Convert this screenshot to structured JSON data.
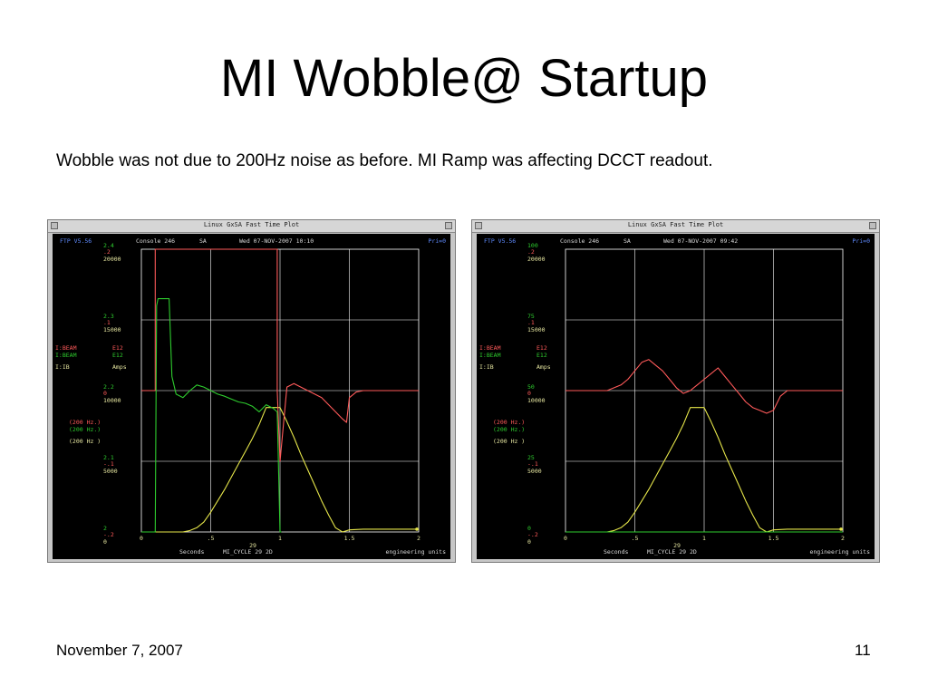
{
  "slide": {
    "title": "MI Wobble@ Startup",
    "subtitle": "Wobble was not due to 200Hz noise as before. MI Ramp was affecting DCCT readout.",
    "footer_date": "November 7, 2007",
    "page_number": "11"
  },
  "chart_data": [
    {
      "type": "line",
      "window_title": "Linux GxSA  Fast Time Plot",
      "header": {
        "program": "FTP V5.56",
        "console": "Console 246",
        "mode": "SA",
        "datetime": "Wed 07-NOV-2007 10:10",
        "priority": "Pri=0"
      },
      "colors": {
        "series1": "#ff5a5a",
        "series2": "#2ecc2e",
        "series3": "#e6e64a",
        "grid": "#ffffff"
      },
      "axis_labels": {
        "series1": [
          [
            "2.4",
            ".2"
          ],
          [
            "2.3",
            ".1"
          ],
          [
            "2.2",
            "0"
          ],
          [
            "2.1",
            "-.1"
          ],
          [
            "2",
            "-.2"
          ]
        ],
        "series3": [
          "20000",
          "15000",
          "10000",
          "5000",
          "0"
        ]
      },
      "legend": [
        {
          "device": "I:BEAM",
          "units": "E12",
          "range": "(200  Hz.)"
        },
        {
          "device": "I:BEAM",
          "units": "E12",
          "range": "(200  Hz.)"
        },
        {
          "device": "I:IB",
          "units": "Amps",
          "range": "(200   Hz )"
        }
      ],
      "x_ticks": [
        "0",
        ".5",
        "1",
        "1.5",
        "2"
      ],
      "xlim": [
        0,
        2
      ],
      "footer": {
        "xlabel": "Seconds",
        "event": "MI_CYCLE  29 2D",
        "sub": "29",
        "units": "engineering units"
      },
      "series": [
        {
          "ylim": [
            2,
            2.4
          ],
          "x": [
            0,
            0.02,
            0.03,
            0.05,
            0.08,
            0.1,
            0.1,
            0.98,
            0.98,
            1.0,
            1.05,
            1.1,
            1.15,
            1.2,
            1.25,
            1.3,
            1.35,
            1.4,
            1.45,
            1.48,
            1.5,
            1.55,
            1.6,
            1.7,
            1.8,
            1.9,
            2.0
          ],
          "y": [
            2.2,
            2.2,
            2.2,
            2.2,
            2.2,
            2.2,
            2.4,
            2.4,
            2.2,
            2.1,
            2.205,
            2.21,
            2.205,
            2.2,
            2.195,
            2.19,
            2.18,
            2.17,
            2.16,
            2.155,
            2.19,
            2.198,
            2.2,
            2.2,
            2.2,
            2.2,
            2.2
          ]
        },
        {
          "ylim": [
            -0.2,
            0.2
          ],
          "x": [
            0,
            0.1,
            0.11,
            0.12,
            0.14,
            0.2,
            0.22,
            0.25,
            0.3,
            0.35,
            0.4,
            0.45,
            0.5,
            0.55,
            0.6,
            0.65,
            0.7,
            0.75,
            0.8,
            0.85,
            0.9,
            0.95,
            0.98,
            1.0,
            1.01
          ],
          "y": [
            -0.2,
            -0.2,
            0.12,
            0.13,
            0.13,
            0.13,
            0.02,
            -0.005,
            -0.01,
            0.0,
            0.008,
            0.005,
            0.0,
            -0.005,
            -0.008,
            -0.012,
            -0.016,
            -0.018,
            -0.022,
            -0.03,
            -0.02,
            -0.025,
            -0.03,
            -0.2,
            -0.2
          ]
        },
        {
          "ylim": [
            0,
            20000
          ],
          "x": [
            0,
            0.15,
            0.25,
            0.3,
            0.35,
            0.4,
            0.45,
            0.5,
            0.55,
            0.6,
            0.65,
            0.7,
            0.75,
            0.8,
            0.85,
            0.9,
            0.95,
            1.0,
            1.05,
            1.1,
            1.15,
            1.2,
            1.25,
            1.3,
            1.35,
            1.4,
            1.45,
            1.5,
            1.6,
            1.7,
            1.8,
            1.9,
            2.0
          ],
          "y": [
            0,
            0,
            0,
            0,
            100,
            300,
            700,
            1400,
            2200,
            3000,
            3900,
            4800,
            5700,
            6600,
            7600,
            8800,
            8800,
            8800,
            7800,
            6700,
            5500,
            4400,
            3300,
            2200,
            1200,
            300,
            0,
            150,
            200,
            200,
            200,
            200,
            200
          ]
        }
      ]
    },
    {
      "type": "line",
      "window_title": "Linux GxSA  Fast Time Plot",
      "header": {
        "program": "FTP V5.56",
        "console": "Console 246",
        "mode": "SA",
        "datetime": "Wed 07-NOV-2007 09:42",
        "priority": "Pri=0"
      },
      "colors": {
        "series1": "#ff5a5a",
        "series2": "#2ecc2e",
        "series3": "#e6e64a",
        "grid": "#ffffff"
      },
      "axis_labels": {
        "series1": [
          [
            "100",
            ".2"
          ],
          [
            "75",
            ".1"
          ],
          [
            "50",
            "0"
          ],
          [
            "25",
            "-.1"
          ],
          [
            "0",
            "-.2"
          ]
        ],
        "series3": [
          "20000",
          "15000",
          "10000",
          "5000",
          "0"
        ]
      },
      "legend": [
        {
          "device": "I:BEAM",
          "units": "E12",
          "range": "(200  Hz.)"
        },
        {
          "device": "I:BEAM",
          "units": "E12",
          "range": "(200  Hz.)"
        },
        {
          "device": "I:IB",
          "units": "Amps",
          "range": "(200   Hz )"
        }
      ],
      "x_ticks": [
        "0",
        ".5",
        "1",
        "1.5",
        "2"
      ],
      "xlim": [
        0,
        2
      ],
      "footer": {
        "xlabel": "Seconds",
        "event": "MI_CYCLE  29 2D",
        "sub": "29",
        "units": "engineering units"
      },
      "series": [
        {
          "ylim": [
            0,
            100
          ],
          "x": [
            0,
            0.1,
            0.2,
            0.3,
            0.4,
            0.45,
            0.5,
            0.55,
            0.6,
            0.65,
            0.7,
            0.75,
            0.8,
            0.85,
            0.9,
            0.95,
            1.0,
            1.05,
            1.1,
            1.15,
            1.2,
            1.25,
            1.3,
            1.35,
            1.4,
            1.45,
            1.5,
            1.55,
            1.6,
            1.7,
            1.8,
            1.9,
            2.0
          ],
          "y": [
            50,
            50,
            50,
            50,
            52,
            54,
            57,
            60,
            61,
            59,
            57,
            54,
            51,
            49,
            50,
            52,
            54,
            56,
            58,
            55,
            52,
            49,
            46,
            44,
            43,
            42,
            43,
            48,
            50,
            50,
            50,
            50,
            50
          ]
        },
        {
          "ylim": [
            -0.2,
            0.2
          ],
          "x": [
            0,
            0.5,
            1.0,
            1.5,
            2.0
          ],
          "y": [
            -0.2,
            -0.2,
            -0.2,
            -0.2,
            -0.2
          ]
        },
        {
          "ylim": [
            0,
            20000
          ],
          "x": [
            0,
            0.15,
            0.25,
            0.3,
            0.35,
            0.4,
            0.45,
            0.5,
            0.55,
            0.6,
            0.65,
            0.7,
            0.75,
            0.8,
            0.85,
            0.9,
            0.95,
            1.0,
            1.05,
            1.1,
            1.15,
            1.2,
            1.25,
            1.3,
            1.35,
            1.4,
            1.45,
            1.5,
            1.6,
            1.7,
            1.8,
            1.9,
            2.0
          ],
          "y": [
            0,
            0,
            0,
            0,
            100,
            300,
            700,
            1400,
            2200,
            3000,
            3900,
            4800,
            5700,
            6600,
            7600,
            8800,
            8800,
            8800,
            7800,
            6700,
            5500,
            4400,
            3300,
            2200,
            1200,
            300,
            0,
            150,
            200,
            200,
            200,
            200,
            200
          ]
        }
      ]
    }
  ]
}
